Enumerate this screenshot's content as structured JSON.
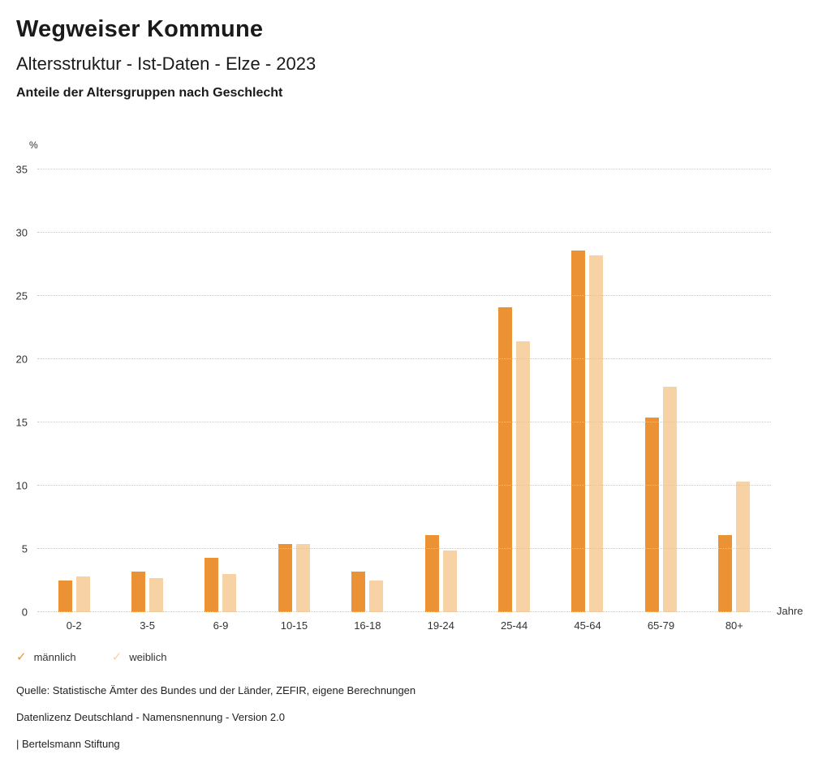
{
  "header": {
    "title": "Wegweiser Kommune",
    "subtitle": "Altersstruktur - Ist-Daten - Elze - 2023",
    "chart_heading": "Anteile der Altersgruppen nach Geschlecht"
  },
  "chart_data": {
    "type": "bar",
    "title": "Anteile der Altersgruppen nach Geschlecht",
    "categories": [
      "0-2",
      "3-5",
      "6-9",
      "10-15",
      "16-18",
      "19-24",
      "25-44",
      "45-64",
      "65-79",
      "80+"
    ],
    "series": [
      {
        "name": "männlich",
        "color": "#EB9234",
        "values": [
          2.5,
          3.2,
          4.3,
          5.4,
          3.2,
          6.1,
          24.1,
          28.6,
          15.4,
          6.1
        ]
      },
      {
        "name": "weiblich",
        "color": "#F7D2A4",
        "values": [
          2.8,
          2.7,
          3.0,
          5.4,
          2.5,
          4.9,
          21.4,
          28.2,
          17.8,
          10.3
        ]
      }
    ],
    "xlabel": "Jahre",
    "ylabel": "%",
    "ylim": [
      0,
      35
    ],
    "ytick_step": 5,
    "grid": true,
    "legend_position": "bottom-left",
    "legend_marker": "checkmark"
  },
  "icons": {
    "legend_check": "✓"
  },
  "colors": {
    "grid": "#c9c9c9",
    "text": "#333333",
    "background": "#ffffff"
  },
  "footer": {
    "source": "Quelle: Statistische Ämter des Bundes und der Länder, ZEFIR, eigene Berechnungen",
    "license": "Datenlizenz Deutschland - Namensnennung - Version 2.0",
    "attribution": "| Bertelsmann Stiftung"
  }
}
